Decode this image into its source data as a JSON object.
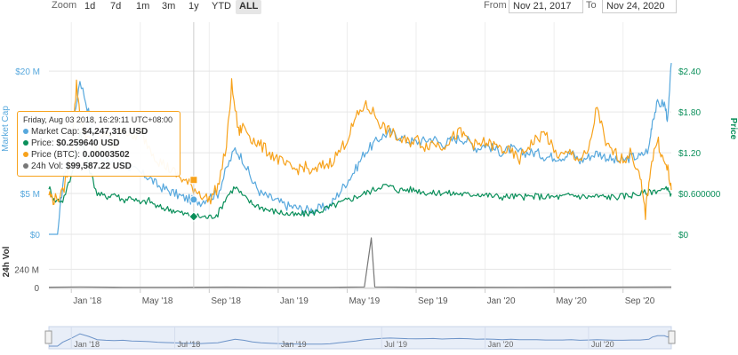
{
  "toolbar": {
    "zoom_label": "Zoom",
    "zoom_options": [
      "1d",
      "7d",
      "1m",
      "3m",
      "1y",
      "YTD",
      "ALL"
    ],
    "active_zoom": "ALL",
    "from_label": "From",
    "from_value": "Nov 21, 2017",
    "to_label": "To",
    "to_value": "Nov 24, 2020"
  },
  "tooltip": {
    "date": "Friday, Aug 03 2018, 16:29:11 UTC+08:00",
    "rows": [
      {
        "label": "Market Cap:",
        "value": "$4,247,316 USD",
        "color": "#57a8dd"
      },
      {
        "label": "Price:",
        "value": "$0.259640 USD",
        "color": "#0a8f5a"
      },
      {
        "label": "Price (BTC):",
        "value": "0.00003502",
        "color": "#f7a21b"
      },
      {
        "label": "24h Vol:",
        "value": "$99,587.22 USD",
        "color": "#777777"
      }
    ]
  },
  "chart_data": {
    "type": "line",
    "x_ticks": [
      "Jan '18",
      "May '18",
      "Sep '18",
      "Jan '19",
      "May '19",
      "Sep '19",
      "Jan '20",
      "May '20",
      "Sep '20"
    ],
    "navigator_ticks": [
      "Jan '18",
      "Jul '18",
      "Jan '19",
      "Jul '19",
      "Jan '20",
      "Jul '20"
    ],
    "y_left": {
      "label": "Market Cap",
      "ticks": [
        "$0",
        "$5 M",
        "$20 M"
      ],
      "tick_values": [
        0,
        5,
        20
      ],
      "range": [
        0,
        26
      ]
    },
    "y_right": {
      "label": "Price",
      "ticks": [
        "$0",
        "$0.600000",
        "$1.20",
        "$1.80",
        "$2.40"
      ],
      "tick_values": [
        0,
        0.6,
        1.2,
        1.8,
        2.4
      ],
      "range": [
        0,
        3.12
      ]
    },
    "y_vol": {
      "label": "24h Vol",
      "ticks": [
        "0",
        "240 M"
      ],
      "tick_values": [
        0,
        240
      ],
      "range": [
        0,
        650
      ]
    },
    "x_start_month": 10.7,
    "x_end_month": 46.8,
    "series": [
      {
        "name": "Market Cap",
        "axis": "left",
        "color": "#57a8dd",
        "points": [
          [
            10.7,
            0
          ],
          [
            11.2,
            0
          ],
          [
            11.5,
            6
          ],
          [
            12.0,
            12
          ],
          [
            12.5,
            19
          ],
          [
            13.0,
            15
          ],
          [
            13.5,
            10
          ],
          [
            14.0,
            9
          ],
          [
            14.5,
            8.5
          ],
          [
            15.0,
            9
          ],
          [
            15.5,
            8
          ],
          [
            16.0,
            7.5
          ],
          [
            16.5,
            7
          ],
          [
            17.0,
            6
          ],
          [
            17.5,
            5.5
          ],
          [
            18.0,
            5
          ],
          [
            18.5,
            4.5
          ],
          [
            19.0,
            4.2
          ],
          [
            19.5,
            4.0
          ],
          [
            20.0,
            4.6
          ],
          [
            20.5,
            5
          ],
          [
            21.0,
            8
          ],
          [
            21.5,
            10.5
          ],
          [
            22.0,
            9
          ],
          [
            22.5,
            6.5
          ],
          [
            23.0,
            5
          ],
          [
            23.5,
            4.5
          ],
          [
            24.0,
            4
          ],
          [
            24.5,
            3.5
          ],
          [
            25.0,
            3.3
          ],
          [
            25.5,
            3.0
          ],
          [
            26.0,
            3.0
          ],
          [
            26.5,
            3.2
          ],
          [
            27.0,
            3.5
          ],
          [
            27.5,
            5
          ],
          [
            28.0,
            6.5
          ],
          [
            28.5,
            8
          ],
          [
            29.0,
            10
          ],
          [
            29.5,
            11
          ],
          [
            30.0,
            12
          ],
          [
            30.5,
            12.5
          ],
          [
            31.0,
            12
          ],
          [
            31.5,
            11.5
          ],
          [
            32.0,
            11.3
          ],
          [
            32.5,
            11.5
          ],
          [
            33.0,
            11.8
          ],
          [
            33.5,
            11
          ],
          [
            34.0,
            11.5
          ],
          [
            34.5,
            11.8
          ],
          [
            35.0,
            11.5
          ],
          [
            35.5,
            10.5
          ],
          [
            36.0,
            11
          ],
          [
            36.5,
            10.5
          ],
          [
            37.0,
            10
          ],
          [
            37.5,
            10.5
          ],
          [
            38.0,
            10
          ],
          [
            38.5,
            10
          ],
          [
            39.0,
            10
          ],
          [
            39.5,
            9.5
          ],
          [
            40.0,
            9.5
          ],
          [
            40.5,
            9.5
          ],
          [
            41.0,
            10
          ],
          [
            41.5,
            9
          ],
          [
            42.0,
            9.5
          ],
          [
            42.5,
            10
          ],
          [
            43.0,
            9.5
          ],
          [
            43.5,
            9
          ],
          [
            44.0,
            9
          ],
          [
            44.5,
            9.5
          ],
          [
            45.0,
            9.5
          ],
          [
            45.5,
            10.5
          ],
          [
            45.7,
            14
          ],
          [
            46.0,
            16
          ],
          [
            46.4,
            16
          ],
          [
            46.6,
            14
          ],
          [
            46.8,
            21
          ]
        ]
      },
      {
        "name": "Price",
        "axis": "right",
        "color": "#0a8f5a",
        "points": [
          [
            10.7,
            0.7
          ],
          [
            11.0,
            0.5
          ],
          [
            11.5,
            0.5
          ],
          [
            12.0,
            0.85
          ],
          [
            12.5,
            1.5
          ],
          [
            13.0,
            1.0
          ],
          [
            13.5,
            0.6
          ],
          [
            14.0,
            0.55
          ],
          [
            14.5,
            0.6
          ],
          [
            15.0,
            0.5
          ],
          [
            15.5,
            0.55
          ],
          [
            16.0,
            0.45
          ],
          [
            16.5,
            0.5
          ],
          [
            17.0,
            0.4
          ],
          [
            17.5,
            0.38
          ],
          [
            18.0,
            0.35
          ],
          [
            18.5,
            0.3
          ],
          [
            19.0,
            0.28
          ],
          [
            19.5,
            0.26
          ],
          [
            20.0,
            0.25
          ],
          [
            20.5,
            0.3
          ],
          [
            21.0,
            0.55
          ],
          [
            21.5,
            0.7
          ],
          [
            22.0,
            0.55
          ],
          [
            22.5,
            0.45
          ],
          [
            23.0,
            0.4
          ],
          [
            23.5,
            0.35
          ],
          [
            24.0,
            0.33
          ],
          [
            24.5,
            0.3
          ],
          [
            25.0,
            0.28
          ],
          [
            25.5,
            0.3
          ],
          [
            26.0,
            0.32
          ],
          [
            26.5,
            0.35
          ],
          [
            27.0,
            0.4
          ],
          [
            27.5,
            0.45
          ],
          [
            28.0,
            0.5
          ],
          [
            28.5,
            0.55
          ],
          [
            29.0,
            0.6
          ],
          [
            29.5,
            0.65
          ],
          [
            30.0,
            0.72
          ],
          [
            30.5,
            0.7
          ],
          [
            31.0,
            0.65
          ],
          [
            31.5,
            0.66
          ],
          [
            32.0,
            0.65
          ],
          [
            32.5,
            0.62
          ],
          [
            33.0,
            0.6
          ],
          [
            33.5,
            0.62
          ],
          [
            34.0,
            0.6
          ],
          [
            34.5,
            0.6
          ],
          [
            35.0,
            0.58
          ],
          [
            35.5,
            0.6
          ],
          [
            36.0,
            0.58
          ],
          [
            36.5,
            0.56
          ],
          [
            37.0,
            0.55
          ],
          [
            37.5,
            0.56
          ],
          [
            38.0,
            0.55
          ],
          [
            38.5,
            0.55
          ],
          [
            39.0,
            0.56
          ],
          [
            39.5,
            0.55
          ],
          [
            40.0,
            0.55
          ],
          [
            40.5,
            0.55
          ],
          [
            41.0,
            0.58
          ],
          [
            41.5,
            0.56
          ],
          [
            42.0,
            0.55
          ],
          [
            42.5,
            0.56
          ],
          [
            43.0,
            0.55
          ],
          [
            43.5,
            0.55
          ],
          [
            44.0,
            0.56
          ],
          [
            44.5,
            0.58
          ],
          [
            45.0,
            0.6
          ],
          [
            45.5,
            0.62
          ],
          [
            46.0,
            0.65
          ],
          [
            46.5,
            0.66
          ],
          [
            46.8,
            0.6
          ]
        ]
      },
      {
        "name": "Price (BTC)",
        "axis": "right",
        "color": "#f7a21b",
        "points": [
          [
            10.7,
            0.6
          ],
          [
            11.0,
            0.5
          ],
          [
            11.5,
            0.6
          ],
          [
            12.0,
            1.2
          ],
          [
            12.3,
            2.2
          ],
          [
            12.6,
            1.6
          ],
          [
            13.0,
            1.4
          ],
          [
            13.5,
            1.2
          ],
          [
            14.0,
            1.5
          ],
          [
            14.5,
            1.3
          ],
          [
            15.0,
            1.6
          ],
          [
            15.5,
            1.4
          ],
          [
            16.0,
            1.5
          ],
          [
            16.5,
            1.3
          ],
          [
            17.0,
            1.1
          ],
          [
            17.5,
            1.0
          ],
          [
            18.0,
            0.9
          ],
          [
            18.5,
            0.8
          ],
          [
            19.0,
            0.7
          ],
          [
            19.5,
            0.6
          ],
          [
            20.0,
            0.5
          ],
          [
            20.5,
            0.7
          ],
          [
            21.0,
            1.3
          ],
          [
            21.3,
            2.2
          ],
          [
            21.7,
            1.5
          ],
          [
            22.0,
            1.6
          ],
          [
            22.5,
            1.4
          ],
          [
            23.0,
            1.3
          ],
          [
            23.5,
            1.2
          ],
          [
            24.0,
            1.1
          ],
          [
            24.5,
            1.0
          ],
          [
            25.0,
            0.95
          ],
          [
            25.5,
            1.0
          ],
          [
            26.0,
            0.9
          ],
          [
            26.5,
            1.0
          ],
          [
            27.0,
            1.05
          ],
          [
            27.5,
            1.2
          ],
          [
            28.0,
            1.4
          ],
          [
            28.5,
            1.7
          ],
          [
            29.0,
            1.9
          ],
          [
            29.5,
            1.8
          ],
          [
            30.0,
            1.6
          ],
          [
            30.5,
            1.5
          ],
          [
            31.0,
            1.4
          ],
          [
            31.5,
            1.35
          ],
          [
            32.0,
            1.4
          ],
          [
            32.5,
            1.3
          ],
          [
            33.0,
            1.35
          ],
          [
            33.5,
            1.3
          ],
          [
            34.0,
            1.4
          ],
          [
            34.5,
            1.5
          ],
          [
            35.0,
            1.4
          ],
          [
            35.5,
            1.3
          ],
          [
            36.0,
            1.35
          ],
          [
            36.5,
            1.3
          ],
          [
            37.0,
            1.25
          ],
          [
            37.5,
            1.2
          ],
          [
            38.0,
            1.1
          ],
          [
            38.5,
            1.3
          ],
          [
            39.0,
            1.4
          ],
          [
            39.5,
            1.5
          ],
          [
            40.0,
            1.2
          ],
          [
            40.5,
            1.15
          ],
          [
            41.0,
            1.2
          ],
          [
            41.5,
            1.1
          ],
          [
            42.0,
            1.2
          ],
          [
            42.5,
            1.9
          ],
          [
            43.0,
            1.3
          ],
          [
            43.5,
            1.2
          ],
          [
            44.0,
            1.1
          ],
          [
            44.5,
            1.2
          ],
          [
            45.0,
            0.8
          ],
          [
            45.3,
            0.3
          ],
          [
            45.6,
            1.0
          ],
          [
            46.0,
            1.4
          ],
          [
            46.3,
            1.1
          ],
          [
            46.6,
            0.95
          ],
          [
            46.8,
            0.65
          ]
        ]
      },
      {
        "name": "24h Vol",
        "axis": "vol",
        "color": "#777777",
        "points": [
          [
            10.7,
            5
          ],
          [
            12.5,
            8
          ],
          [
            15.0,
            4
          ],
          [
            18.0,
            3
          ],
          [
            21.0,
            6
          ],
          [
            24.0,
            3
          ],
          [
            27.0,
            4
          ],
          [
            29.0,
            8
          ],
          [
            29.4,
            650
          ],
          [
            29.6,
            8
          ],
          [
            32.0,
            5
          ],
          [
            35.0,
            5
          ],
          [
            38.0,
            4
          ],
          [
            41.0,
            5
          ],
          [
            44.0,
            6
          ],
          [
            46.8,
            7
          ]
        ]
      }
    ],
    "tooltip_x_month": 19.1
  }
}
